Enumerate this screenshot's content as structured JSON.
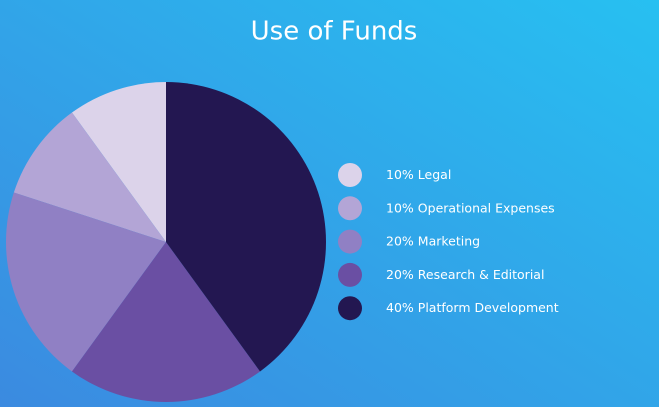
{
  "chart_data": {
    "type": "pie",
    "title": "Use of Funds",
    "categories": [
      "Legal",
      "Operational Expenses",
      "Marketing",
      "Research & Editorial",
      "Platform Development"
    ],
    "values": [
      10,
      10,
      20,
      20,
      40
    ],
    "value_labels": [
      "10%",
      "10%",
      "20%",
      "20%",
      "40%"
    ],
    "colors": [
      "#dcd3ea",
      "#b3a5d6",
      "#9080c4",
      "#6a4fa3",
      "#231751"
    ]
  }
}
